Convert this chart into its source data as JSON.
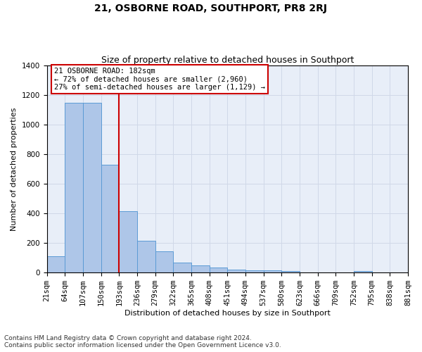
{
  "title": "21, OSBORNE ROAD, SOUTHPORT, PR8 2RJ",
  "subtitle": "Size of property relative to detached houses in Southport",
  "xlabel": "Distribution of detached houses by size in Southport",
  "ylabel": "Number of detached properties",
  "footer_line1": "Contains HM Land Registry data © Crown copyright and database right 2024.",
  "footer_line2": "Contains public sector information licensed under the Open Government Licence v3.0.",
  "annotation_line1": "21 OSBORNE ROAD: 182sqm",
  "annotation_line2": "← 72% of detached houses are smaller (2,960)",
  "annotation_line3": "27% of semi-detached houses are larger (1,129) →",
  "bin_edges": [
    21,
    64,
    107,
    150,
    193,
    236,
    279,
    322,
    365,
    408,
    451,
    494,
    537,
    580,
    623,
    666,
    709,
    752,
    795,
    838,
    881
  ],
  "bar_values": [
    110,
    1150,
    1150,
    730,
    415,
    215,
    145,
    70,
    50,
    33,
    20,
    15,
    15,
    12,
    0,
    0,
    0,
    12,
    0,
    0
  ],
  "bar_color": "#aec6e8",
  "bar_edge_color": "#5b9bd5",
  "highlight_line_color": "#cc0000",
  "grid_color": "#d0d8e8",
  "background_color": "#e8eef8",
  "ylim": [
    0,
    1400
  ],
  "yticks": [
    0,
    200,
    400,
    600,
    800,
    1000,
    1200,
    1400
  ],
  "title_fontsize": 10,
  "subtitle_fontsize": 9,
  "axis_label_fontsize": 8,
  "tick_fontsize": 7.5,
  "annotation_fontsize": 7.5,
  "footer_fontsize": 6.5
}
